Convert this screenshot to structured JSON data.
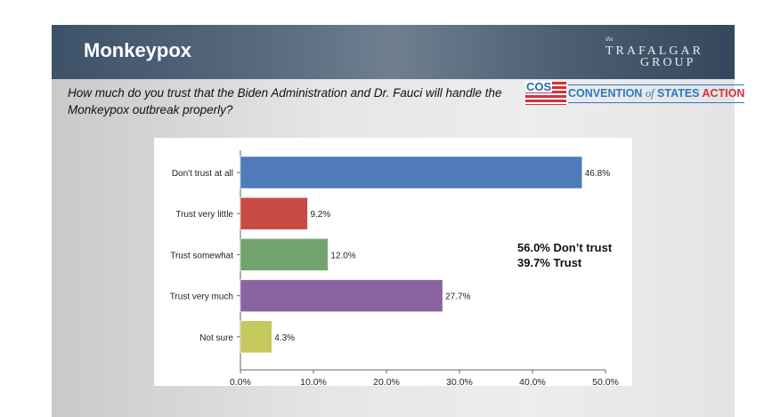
{
  "header": {
    "title": "Monkeypox",
    "logo_text": "the TRAFALGAR GROUP"
  },
  "question": "How much do you trust that the Biden Administration and Dr. Fauci will handle the Monkeypox outbreak properly?",
  "cos_logo": {
    "abbr": "COS",
    "name_1": "CONVENTION",
    "name_of": "of",
    "name_2": "STATES",
    "name_3": "ACTION"
  },
  "summary": {
    "line1": "56.0% Don’t trust",
    "line2": "39.7% Trust"
  },
  "chart_data": {
    "type": "bar",
    "orientation": "horizontal",
    "categories": [
      "Don't trust at all",
      "Trust very little",
      "Trust somewhat",
      "Trust very much",
      "Not sure"
    ],
    "values": [
      46.8,
      9.2,
      12.0,
      27.7,
      4.3
    ],
    "data_labels": [
      "46.8%",
      "9.2%",
      "12.0%",
      "27.7%",
      "4.3%"
    ],
    "colors": [
      "#4f7bbb",
      "#c84a44",
      "#72a36f",
      "#8a64a0",
      "#c5c85c"
    ],
    "xlim": [
      0,
      50
    ],
    "xticks": [
      "0.0%",
      "10.0%",
      "20.0%",
      "30.0%",
      "40.0%",
      "50.0%"
    ],
    "grid": false,
    "title": "",
    "xlabel": "",
    "ylabel": ""
  }
}
